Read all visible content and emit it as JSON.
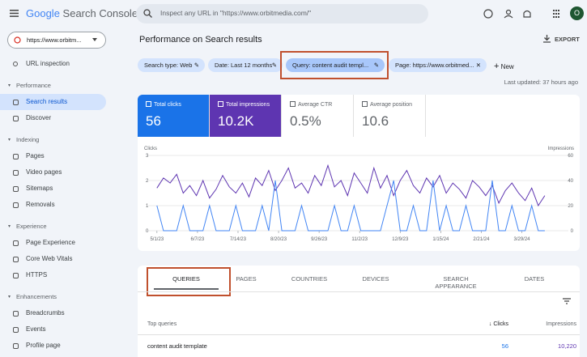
{
  "header": {
    "brand": "Google",
    "product": "Search Console",
    "search_placeholder": "Inspect any URL in \"https://www.orbitmedia.com/\"",
    "avatar": "O"
  },
  "sidebar": {
    "property": "https://www.orbitm...",
    "top": "URL inspection",
    "sections": [
      {
        "title": "Performance",
        "items": [
          "Search results",
          "Discover"
        ]
      },
      {
        "title": "Indexing",
        "items": [
          "Pages",
          "Video pages",
          "Sitemaps",
          "Removals"
        ]
      },
      {
        "title": "Experience",
        "items": [
          "Page Experience",
          "Core Web Vitals",
          "HTTPS"
        ]
      },
      {
        "title": "Enhancements",
        "items": [
          "Breadcrumbs",
          "Events",
          "Profile page"
        ]
      }
    ]
  },
  "page": {
    "title": "Performance on Search results",
    "export": "EXPORT",
    "filters": [
      "Search type: Web",
      "Date: Last 12 months",
      "Query: content audit templ...",
      "Page: https://www.orbitmed..."
    ],
    "new": "New",
    "last_updated": "Last updated: 37 hours ago"
  },
  "metrics": [
    {
      "label": "Total clicks",
      "value": "56"
    },
    {
      "label": "Total impressions",
      "value": "10.2K"
    },
    {
      "label": "Average CTR",
      "value": "0.5%"
    },
    {
      "label": "Average position",
      "value": "10.6"
    }
  ],
  "chart": {
    "type": "line",
    "y_label": "Clicks",
    "y2_label": "Impressions",
    "x": [
      0,
      6,
      12,
      18,
      24,
      30,
      36,
      42,
      48,
      54,
      60,
      66,
      72,
      78,
      84,
      90,
      96,
      102,
      108,
      114,
      120,
      126,
      132,
      138,
      144,
      150,
      156,
      162,
      168,
      174,
      180,
      186,
      192,
      198,
      204,
      210,
      216,
      222,
      228,
      234,
      240,
      246,
      252,
      258,
      264,
      270,
      276,
      282,
      288,
      294,
      300,
      306,
      312,
      318,
      324,
      330,
      336,
      342,
      348,
      354
    ],
    "xlim": [
      -8,
      357
    ],
    "xticks": [
      {
        "value": 0,
        "label": "5/1/23"
      },
      {
        "value": 37,
        "label": "6/7/23"
      },
      {
        "value": 74,
        "label": "7/14/23"
      },
      {
        "value": 111,
        "label": "8/20/23"
      },
      {
        "value": 148,
        "label": "9/26/23"
      },
      {
        "value": 185,
        "label": "11/2/23"
      },
      {
        "value": 222,
        "label": "12/9/23"
      },
      {
        "value": 259,
        "label": "1/15/24"
      },
      {
        "value": 296,
        "label": "2/21/24"
      },
      {
        "value": 333,
        "label": "3/29/24"
      }
    ],
    "ylim": [
      0,
      3
    ],
    "yticks": [
      0,
      1,
      2,
      3
    ],
    "y2lim": [
      0,
      60
    ],
    "y2ticks": [
      0,
      20,
      40,
      60
    ],
    "series": [
      {
        "name": "Impressions",
        "axis": "y2",
        "color": "#5e35b1",
        "values": [
          34,
          42,
          38,
          45,
          30,
          36,
          28,
          40,
          26,
          33,
          44,
          35,
          30,
          38,
          27,
          42,
          36,
          48,
          32,
          40,
          50,
          34,
          38,
          30,
          44,
          36,
          52,
          35,
          40,
          28,
          46,
          38,
          30,
          50,
          34,
          44,
          28,
          40,
          48,
          36,
          30,
          42,
          35,
          44,
          30,
          38,
          33,
          26,
          40,
          35,
          28,
          36,
          22,
          32,
          38,
          30,
          24,
          34,
          20,
          28
        ]
      },
      {
        "name": "Clicks",
        "axis": "y",
        "color": "#4285f4",
        "values": [
          1,
          0,
          0,
          0,
          1,
          0,
          0,
          0,
          1,
          0,
          0,
          0,
          1,
          0,
          0,
          0,
          1,
          0,
          2,
          0,
          0,
          0,
          1,
          0,
          0,
          0,
          0,
          1,
          0,
          0,
          1,
          0,
          0,
          0,
          0,
          1,
          2,
          0,
          0,
          1,
          0,
          0,
          2,
          0,
          1,
          0,
          0,
          1,
          0,
          0,
          0,
          2,
          0,
          0,
          1,
          0,
          0,
          1,
          0,
          0
        ]
      }
    ]
  },
  "tabs": [
    "QUERIES",
    "PAGES",
    "COUNTRIES",
    "DEVICES",
    "SEARCH APPEARANCE",
    "DATES"
  ],
  "table": {
    "headers": [
      "Top queries",
      "Clicks",
      "Impressions"
    ],
    "rows": [
      [
        "content audit template",
        "56",
        "10,220"
      ]
    ]
  }
}
